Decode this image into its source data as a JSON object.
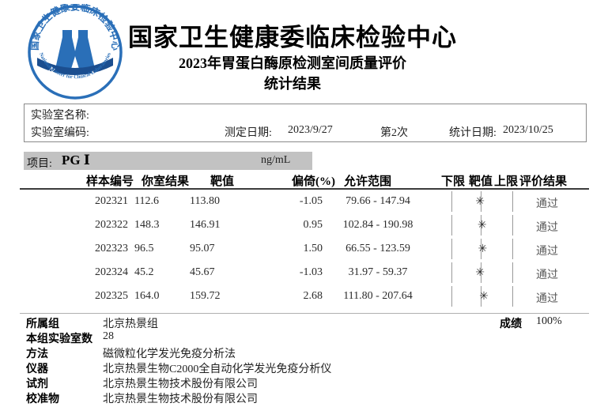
{
  "header": {
    "org_title": "国家卫生健康委临床检验中心",
    "subtitle": "2023年胃蛋白酶原检测室间质量评价",
    "subtitle2": "统计结果",
    "logo": {
      "top_text": "国家卫生健康委临床检验中心",
      "acronym": "N C C L",
      "bottom_text": "National Center for Clinical Laboratories",
      "blue": "#2a6fb8",
      "dark_blue": "#1b4e8f"
    }
  },
  "lab_info": {
    "name_label": "实验室名称:",
    "code_label": "实验室编码:",
    "test_date_label": "测定日期:",
    "test_date": "2023/9/27",
    "round": "第2次",
    "stat_date_label": "统计日期:",
    "stat_date": "2023/10/25"
  },
  "project": {
    "label": "项目:",
    "name": "PG Ⅰ",
    "unit": "ng/mL"
  },
  "table": {
    "headers": [
      "样本编号",
      "你室结果",
      "靶值",
      "偏倚(%)",
      "允许范围",
      "下限",
      "靶值",
      "上限",
      "评价结果"
    ],
    "marker_glyph": "✳",
    "rows": [
      {
        "sample_id": "202321",
        "your_result": "112.6",
        "target": "113.80",
        "bias": "-1.05",
        "range": "79.66 - 147.94",
        "result": "通过",
        "bias_value": -1.05
      },
      {
        "sample_id": "202322",
        "your_result": "148.3",
        "target": "146.91",
        "bias": "0.95",
        "range": "102.84 - 190.98",
        "result": "通过",
        "bias_value": 0.95
      },
      {
        "sample_id": "202323",
        "your_result": "96.5",
        "target": "95.07",
        "bias": "1.50",
        "range": "66.55 - 123.59",
        "result": "通过",
        "bias_value": 1.5
      },
      {
        "sample_id": "202324",
        "your_result": "45.2",
        "target": "45.67",
        "bias": "-1.03",
        "range": "31.97 - 59.37",
        "result": "通过",
        "bias_value": -1.03
      },
      {
        "sample_id": "202325",
        "your_result": "164.0",
        "target": "159.72",
        "bias": "2.68",
        "range": "111.80 - 207.64",
        "result": "通过",
        "bias_value": 2.68
      }
    ]
  },
  "footer": {
    "rows": [
      {
        "label": "所属组",
        "value": "北京热景组"
      },
      {
        "label": "本组实验室数",
        "value": "28"
      },
      {
        "label": "方法",
        "value": "磁微粒化学发光免疫分析法"
      },
      {
        "label": "仪器",
        "value": "北京热景生物C2000全自动化学发光免疫分析仪"
      },
      {
        "label": "试剂",
        "value": "北京热景生物技术股份有限公司"
      },
      {
        "label": "校准物",
        "value": "北京热景生物技术股份有限公司"
      }
    ],
    "score_label": "成绩",
    "score": "100%"
  }
}
